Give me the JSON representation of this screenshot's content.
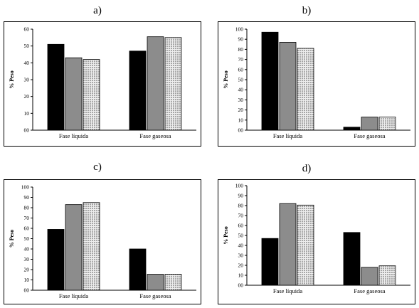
{
  "chart_data": [
    {
      "type": "bar",
      "panel": "a)",
      "categories": [
        "Fase líquida",
        "Fase gaseosa"
      ],
      "series": [
        {
          "values": [
            51,
            47
          ],
          "color": "#000000",
          "pattern": "solid"
        },
        {
          "values": [
            43,
            55.5
          ],
          "color": "#8c8c8c",
          "pattern": "solid"
        },
        {
          "values": [
            42,
            55
          ],
          "color": "#d9d9d9",
          "pattern": "dotted"
        }
      ],
      "ylabel": "% Peso",
      "ylim": [
        0,
        60
      ],
      "yticks": [
        "00",
        "10",
        "20",
        "30",
        "40",
        "50",
        "60"
      ]
    },
    {
      "type": "bar",
      "panel": "b)",
      "categories": [
        "Fase líquida",
        "Fase gaseosa"
      ],
      "series": [
        {
          "values": [
            97,
            3
          ],
          "color": "#000000",
          "pattern": "solid"
        },
        {
          "values": [
            87,
            13
          ],
          "color": "#8c8c8c",
          "pattern": "solid"
        },
        {
          "values": [
            81,
            13
          ],
          "color": "#d9d9d9",
          "pattern": "dotted"
        }
      ],
      "ylabel": "% Peso",
      "ylim": [
        0,
        100
      ],
      "yticks": [
        "00",
        "10",
        "20",
        "30",
        "40",
        "50",
        "60",
        "70",
        "80",
        "90",
        "100"
      ]
    },
    {
      "type": "bar",
      "panel": "c)",
      "categories": [
        "Fase líquida",
        "Fase gaseosa"
      ],
      "series": [
        {
          "values": [
            59,
            40
          ],
          "color": "#000000",
          "pattern": "solid"
        },
        {
          "values": [
            83,
            15.5
          ],
          "color": "#8c8c8c",
          "pattern": "solid"
        },
        {
          "values": [
            85,
            15.5
          ],
          "color": "#d9d9d9",
          "pattern": "dotted"
        }
      ],
      "ylabel": "% Peso",
      "ylim": [
        0,
        100
      ],
      "yticks": [
        "00",
        "10",
        "20",
        "30",
        "40",
        "50",
        "60",
        "70",
        "80",
        "90",
        "100"
      ]
    },
    {
      "type": "bar",
      "panel": "d)",
      "categories": [
        "Fase líquida",
        "Fase gaseosa"
      ],
      "series": [
        {
          "values": [
            47,
            53
          ],
          "color": "#000000",
          "pattern": "solid"
        },
        {
          "values": [
            82,
            18
          ],
          "color": "#8c8c8c",
          "pattern": "solid"
        },
        {
          "values": [
            80.5,
            19.5
          ],
          "color": "#d9d9d9",
          "pattern": "dotted"
        }
      ],
      "ylabel": "% Peso",
      "ylim": [
        0,
        100
      ],
      "yticks": [
        "00",
        "10",
        "20",
        "30",
        "40",
        "50",
        "60",
        "70",
        "80",
        "90",
        "100"
      ]
    }
  ]
}
